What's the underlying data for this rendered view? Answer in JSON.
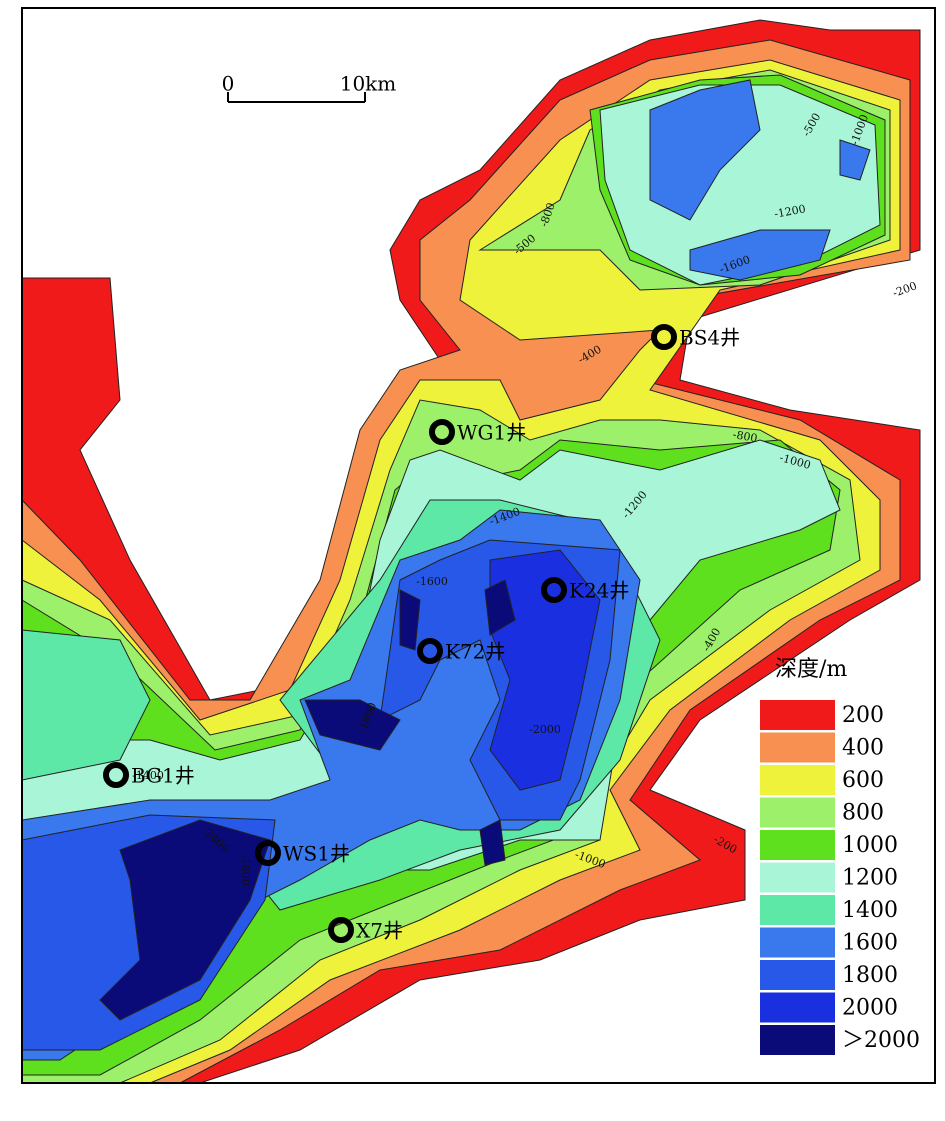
{
  "scale_bar": {
    "start": "0",
    "end": "10km"
  },
  "wells": [
    {
      "label": "BS4井"
    },
    {
      "label": "WG1井"
    },
    {
      "label": "K24井"
    },
    {
      "label": "K72井"
    },
    {
      "label": "BG1井"
    },
    {
      "label": "WS1井"
    },
    {
      "label": "X7井"
    }
  ],
  "contour_labels": [
    "-400",
    "-800",
    "-1000",
    "-1200",
    "-1400",
    "-1600",
    "-2000",
    "-2400",
    "-1000",
    "-400",
    "-200",
    "-500",
    "-1000",
    "-1200",
    "-1600",
    "-200",
    "-1800",
    "-1400",
    "-1800",
    "-800",
    "-500"
  ],
  "legend": {
    "title": "深度/m",
    "items": [
      {
        "label": "200",
        "color": "#f01a1a"
      },
      {
        "label": "400",
        "color": "#f79050"
      },
      {
        "label": "600",
        "color": "#eef23a"
      },
      {
        "label": "800",
        "color": "#9cf06a"
      },
      {
        "label": "1000",
        "color": "#5ee01e"
      },
      {
        "label": "1200",
        "color": "#a8f5d8"
      },
      {
        "label": "1400",
        "color": "#5ee8a8"
      },
      {
        "label": "1600",
        "color": "#3a78ee"
      },
      {
        "label": "1800",
        "color": "#2858e8"
      },
      {
        "label": "2000",
        "color": "#1a30e0"
      },
      {
        "label": "＞2000",
        "color": "#0a0a78"
      }
    ]
  }
}
